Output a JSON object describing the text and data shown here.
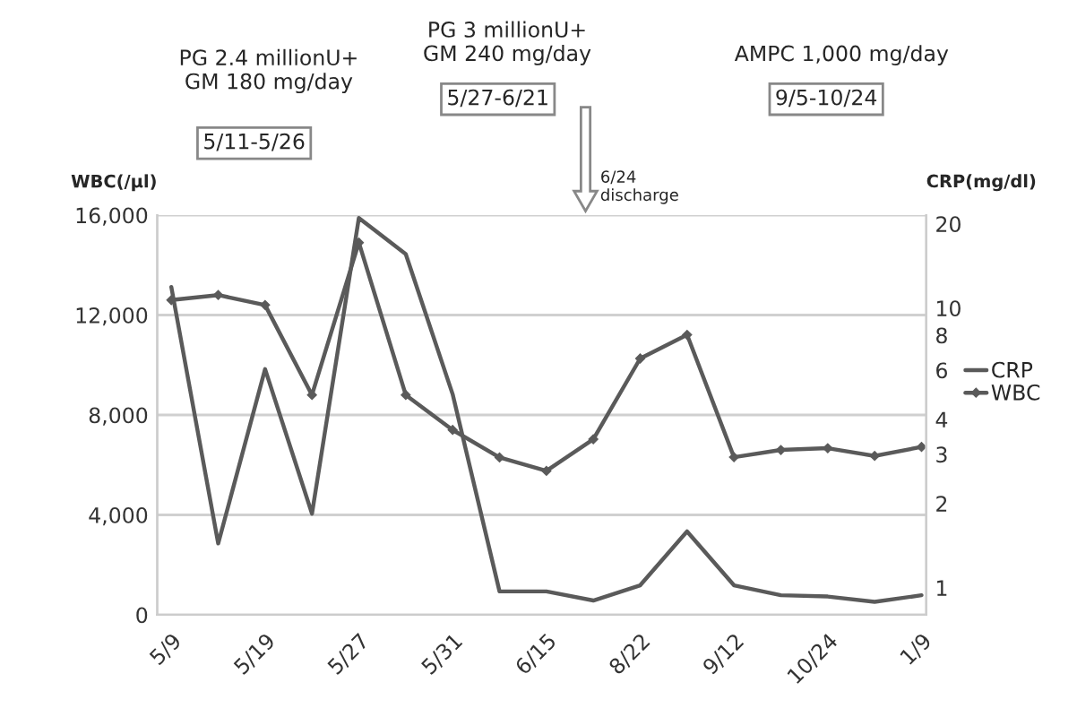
{
  "chart_data": {
    "type": "line",
    "ylabel": "WBC(/μl)",
    "y2label": "CRP(mg/dl)",
    "categories": [
      "5/9",
      null,
      "5/19",
      null,
      "5/27",
      null,
      "5/31",
      null,
      "6/15",
      null,
      "8/22",
      null,
      "9/12",
      null,
      "10/24",
      null,
      "1/9"
    ],
    "series": [
      {
        "name": "CRP",
        "color": "#5a5a5a",
        "axis": "y2",
        "marker": "none",
        "values": [
          11.9,
          1.44,
          6.05,
          1.84,
          21,
          15.6,
          4.92,
          0.97,
          0.97,
          0.9,
          1.02,
          1.59,
          1.02,
          0.94,
          0.93,
          0.89,
          0.94
        ]
      },
      {
        "name": "WBC",
        "color": "#5a5a5a",
        "marker": "diamond",
        "values": [
          12600,
          12800,
          12400,
          8800,
          14900,
          8800,
          7400,
          6300,
          5760,
          7030,
          10260,
          11210,
          6310,
          6600,
          6670,
          6360,
          6720
        ]
      }
    ],
    "ylim": [
      0,
      16000
    ],
    "yticks": [
      {
        "value": 0,
        "label": "0"
      },
      {
        "value": 4000,
        "label": "4,000"
      },
      {
        "value": 8000,
        "label": "8,000"
      },
      {
        "value": 12000,
        "label": "12,000"
      },
      {
        "value": 16000,
        "label": "16,000"
      }
    ],
    "log": "y2",
    "y2lim": [
      0.8,
      21.5
    ],
    "y2ticks": [
      1,
      2,
      3,
      4,
      6,
      8,
      10,
      20
    ],
    "grid": "y",
    "legend": "right",
    "line_style": "solid",
    "annotations": [
      "PG 2.4 millionU+\nGM 180 mg/day",
      "5/11-5/26",
      "PG 3 millionU+\nGM 240 mg/day",
      "5/27-6/21",
      "AMPC 1,000 mg/day",
      "9/5-10/24",
      "6/24\ndischarge"
    ]
  }
}
